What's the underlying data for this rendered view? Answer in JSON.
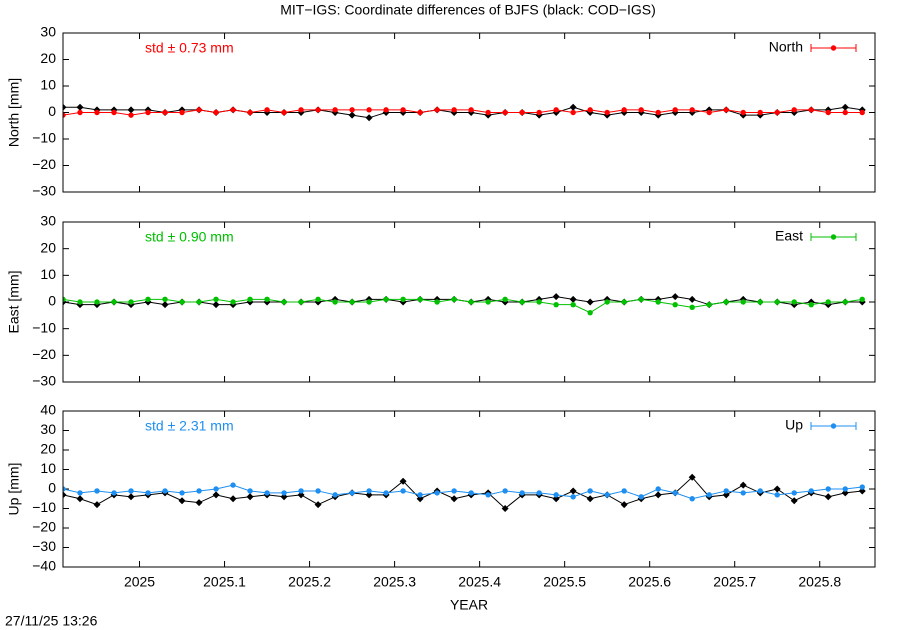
{
  "title": "MIT−IGS: Coordinate differences of BJFS (black: COD−IGS)",
  "timestamp": "27/11/25 13:26",
  "chart_data": [
    {
      "type": "line",
      "ylabel": "North [mm]",
      "annotation": "std ± 0.73 mm",
      "legend": "upper right",
      "xlim": [
        2024.91,
        2025.865
      ],
      "ylim": [
        -30,
        30
      ],
      "yticks": [
        {
          "value": -30,
          "label": "−30"
        },
        {
          "value": -20,
          "label": "−20"
        },
        {
          "value": -10,
          "label": "−10"
        },
        0,
        10,
        20,
        30
      ],
      "x": [
        2024.91,
        2024.93,
        2024.95,
        2024.97,
        2024.99,
        2025.01,
        2025.03,
        2025.05,
        2025.07,
        2025.09,
        2025.11,
        2025.13,
        2025.15,
        2025.17,
        2025.19,
        2025.21,
        2025.23,
        2025.25,
        2025.27,
        2025.29,
        2025.31,
        2025.33,
        2025.35,
        2025.37,
        2025.39,
        2025.41,
        2025.43,
        2025.45,
        2025.47,
        2025.49,
        2025.51,
        2025.53,
        2025.55,
        2025.57,
        2025.59,
        2025.61,
        2025.63,
        2025.65,
        2025.67,
        2025.69,
        2025.71,
        2025.73,
        2025.75,
        2025.77,
        2025.79,
        2025.81,
        2025.83,
        2025.85
      ],
      "series": [
        {
          "color": "#000000",
          "values": [
            2,
            2,
            1,
            1,
            1,
            1,
            0,
            1,
            1,
            0,
            1,
            0,
            0,
            0,
            0,
            1,
            0,
            -1,
            -2,
            0,
            0,
            0,
            1,
            0,
            0,
            -1,
            0,
            0,
            -1,
            0,
            2,
            0,
            -1,
            0,
            0,
            -1,
            0,
            0,
            1,
            1,
            -1,
            -1,
            0,
            0,
            1,
            1,
            2,
            1
          ]
        },
        {
          "name": "North",
          "color": "#ff0000",
          "values": [
            -1,
            0,
            0,
            0,
            -1,
            0,
            0,
            0,
            1,
            0,
            1,
            0,
            1,
            0,
            1,
            1,
            1,
            1,
            1,
            1,
            1,
            0,
            1,
            1,
            1,
            0,
            0,
            0,
            0,
            1,
            0,
            1,
            0,
            1,
            1,
            0,
            1,
            1,
            0,
            1,
            0,
            0,
            0,
            1,
            1,
            0,
            0,
            0
          ]
        }
      ]
    },
    {
      "type": "line",
      "ylabel": "East [mm]",
      "annotation": "std ± 0.90 mm",
      "legend": "upper right",
      "xlim": [
        2024.91,
        2025.865
      ],
      "ylim": [
        -30,
        30
      ],
      "yticks": [
        {
          "value": -30,
          "label": "−30"
        },
        {
          "value": -20,
          "label": "−20"
        },
        {
          "value": -10,
          "label": "−10"
        },
        0,
        10,
        20,
        30
      ],
      "x": [
        2024.91,
        2024.93,
        2024.95,
        2024.97,
        2024.99,
        2025.01,
        2025.03,
        2025.05,
        2025.07,
        2025.09,
        2025.11,
        2025.13,
        2025.15,
        2025.17,
        2025.19,
        2025.21,
        2025.23,
        2025.25,
        2025.27,
        2025.29,
        2025.31,
        2025.33,
        2025.35,
        2025.37,
        2025.39,
        2025.41,
        2025.43,
        2025.45,
        2025.47,
        2025.49,
        2025.51,
        2025.53,
        2025.55,
        2025.57,
        2025.59,
        2025.61,
        2025.63,
        2025.65,
        2025.67,
        2025.69,
        2025.71,
        2025.73,
        2025.75,
        2025.77,
        2025.79,
        2025.81,
        2025.83,
        2025.85
      ],
      "series": [
        {
          "color": "#000000",
          "values": [
            0,
            -1,
            -1,
            0,
            -1,
            0,
            -1,
            0,
            0,
            -1,
            -1,
            0,
            0,
            0,
            0,
            0,
            1,
            0,
            1,
            1,
            0,
            1,
            1,
            1,
            0,
            1,
            0,
            0,
            1,
            2,
            1,
            0,
            1,
            0,
            1,
            1,
            2,
            1,
            -1,
            0,
            1,
            0,
            0,
            -1,
            0,
            -1,
            0,
            0
          ]
        },
        {
          "name": "East",
          "color": "#00c000",
          "values": [
            1,
            0,
            0,
            0,
            0,
            1,
            1,
            0,
            0,
            1,
            0,
            1,
            1,
            0,
            0,
            1,
            0,
            0,
            0,
            1,
            1,
            1,
            0,
            1,
            0,
            0,
            1,
            0,
            0,
            -1,
            -1,
            -4,
            0,
            0,
            1,
            0,
            -1,
            -2,
            -1,
            0,
            0,
            0,
            0,
            0,
            -1,
            0,
            0,
            1
          ]
        }
      ]
    },
    {
      "type": "line",
      "ylabel": "Up [mm]",
      "xlabel": "YEAR",
      "annotation": "std ± 2.31 mm",
      "legend": "upper right",
      "xlim": [
        2024.91,
        2025.865
      ],
      "ylim": [
        -40,
        40
      ],
      "xticks": [
        2025,
        2025.1,
        2025.2,
        2025.3,
        2025.4,
        2025.5,
        2025.6,
        2025.7,
        2025.8
      ],
      "yticks": [
        {
          "value": -40,
          "label": "−40"
        },
        {
          "value": -30,
          "label": "−30"
        },
        {
          "value": -20,
          "label": "−20"
        },
        {
          "value": -10,
          "label": "−10"
        },
        0,
        10,
        20,
        30,
        40
      ],
      "x": [
        2024.91,
        2024.93,
        2024.95,
        2024.97,
        2024.99,
        2025.01,
        2025.03,
        2025.05,
        2025.07,
        2025.09,
        2025.11,
        2025.13,
        2025.15,
        2025.17,
        2025.19,
        2025.21,
        2025.23,
        2025.25,
        2025.27,
        2025.29,
        2025.31,
        2025.33,
        2025.35,
        2025.37,
        2025.39,
        2025.41,
        2025.43,
        2025.45,
        2025.47,
        2025.49,
        2025.51,
        2025.53,
        2025.55,
        2025.57,
        2025.59,
        2025.61,
        2025.63,
        2025.65,
        2025.67,
        2025.69,
        2025.71,
        2025.73,
        2025.75,
        2025.77,
        2025.79,
        2025.81,
        2025.83,
        2025.85
      ],
      "series": [
        {
          "color": "#000000",
          "values": [
            -3,
            -5,
            -8,
            -3,
            -4,
            -3,
            -2,
            -6,
            -7,
            -3,
            -5,
            -4,
            -3,
            -4,
            -3,
            -8,
            -4,
            -2,
            -3,
            -3,
            4,
            -5,
            -1,
            -5,
            -3,
            -2,
            -10,
            -3,
            -3,
            -5,
            -1,
            -5,
            -3,
            -8,
            -5,
            -3,
            -2,
            6,
            -4,
            -3,
            2,
            -2,
            0,
            -6,
            -2,
            -4,
            -2,
            -1
          ]
        },
        {
          "name": "Up",
          "color": "#1e8ff0",
          "values": [
            0,
            -2,
            -1,
            -2,
            -1,
            -2,
            -1,
            -2,
            -1,
            0,
            2,
            -1,
            -2,
            -2,
            -1,
            -1,
            -3,
            -2,
            -1,
            -2,
            -1,
            -3,
            -2,
            -1,
            -2,
            -3,
            -1,
            -2,
            -2,
            -3,
            -4,
            -1,
            -3,
            -1,
            -4,
            0,
            -2,
            -5,
            -3,
            -1,
            -2,
            -1,
            -3,
            -2,
            -1,
            0,
            0,
            1
          ]
        }
      ]
    }
  ]
}
